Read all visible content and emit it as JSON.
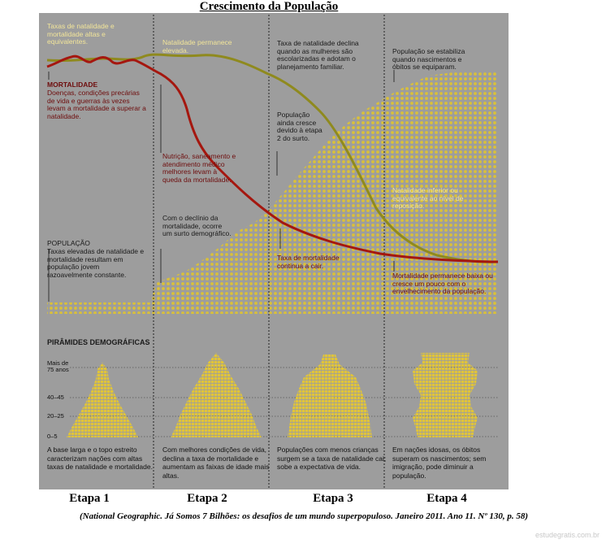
{
  "title": "Crescimento da População",
  "labels": {
    "natalidade_altas": "Taxas de natalidade e mortalidade altas e equivalentes.",
    "mortalidade": "MORTALIDADE",
    "mortalidade_text": "Doenças, condições precárias de vida e guerras às vezes levam a mortalidade a superar a natalidade.",
    "populacao": "POPULAÇÃO",
    "populacao_text": "Taxas elevadas de natalidade e mortalidade resultam em população jovem razoavelmente constante.",
    "natalidade_elevada": "Natalidade permanece elevada.",
    "nutricao": "Nutrição, saneamento e atendimento médico melhores levam à queda da mortalidade.",
    "declinio": "Com o declínio da mortalidade, ocorre um surto demográfico.",
    "natalidade_declina": "Taxa de natalidade declina quando as mulheres são escolarizadas e adotam o planejamento familiar.",
    "populacao_cresce": "População ainda cresce devido à etapa 2 do surto.",
    "mortalidade_cair": "Taxa de mortalidade continua a cair.",
    "estabiliza": "População se estabiliza quando nascimentos e óbitos se equiparam.",
    "natalidade_inferior": "Natalidade inferior ou equivalente ao nível de reposição.",
    "mortalidade_baixa": "Mortalidade permanece baixa ou cresce um pouco com o envelhecimento da população."
  },
  "pyramids_title": "PIRÂMIDES DEMOGRÁFICAS",
  "age_labels": [
    "Mais de 75 anos",
    "40–45",
    "20–25",
    "0–5"
  ],
  "captions": [
    "A base larga e o topo estreito caracterizam nações com altas taxas de natalidade e mortalidade.",
    "Com melhores condições de vida, declina a taxa de mortalidade e aumentam as faixas de idade mais altas.",
    "Populações com menos crianças surgem se a taxa de natalidade cai; sobe a expectativa de vida.",
    "Em nações idosas, os óbitos superam os nascimentos; sem imigração, pode diminuir a população."
  ],
  "stages": [
    "Etapa 1",
    "Etapa 2",
    "Etapa 3",
    "Etapa 4"
  ],
  "source": "(National Geographic. Já Somos 7 Bilhões: os desafios de um mundo superpopuloso. Janeiro 2011. Ano 11. Nº 130, p. 58)",
  "watermark": "estudegratis.com.br",
  "colors": {
    "panel": "#9d9d9d",
    "birth_line": "#8f8a1e",
    "death_line": "#a5170f",
    "population_dots": "#d9c03a"
  }
}
